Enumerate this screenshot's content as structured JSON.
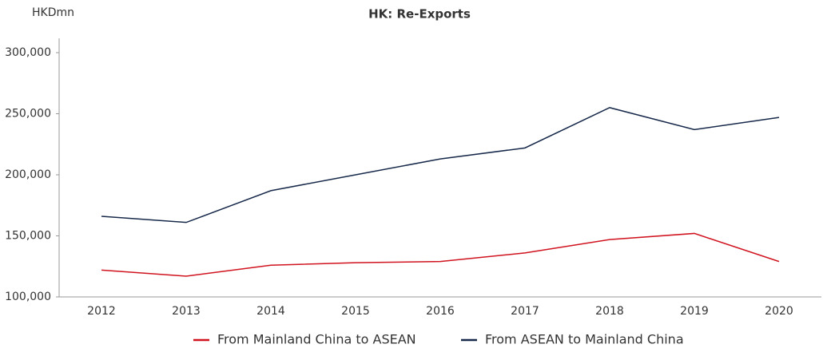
{
  "chart_data": {
    "type": "line",
    "title": "HK: Re-Exports",
    "y_label": "HKDmn",
    "categories": [
      "2012",
      "2013",
      "2014",
      "2015",
      "2016",
      "2017",
      "2018",
      "2019",
      "2020"
    ],
    "series": [
      {
        "name": "From Mainland China to ASEAN",
        "color": "#d0131e",
        "values": [
          122000,
          117000,
          126000,
          128000,
          129000,
          136000,
          147000,
          152000,
          129000
        ]
      },
      {
        "name": "From ASEAN to Mainland China",
        "color": "#17294a",
        "values": [
          166000,
          161000,
          187000,
          200000,
          213000,
          222000,
          255000,
          237000,
          247000
        ]
      }
    ],
    "ylim": [
      100000,
      300000
    ],
    "yticks": [
      {
        "value": 100000,
        "label": "100,000"
      },
      {
        "value": 150000,
        "label": "150,000"
      },
      {
        "value": 200000,
        "label": "200,000"
      },
      {
        "value": 250000,
        "label": "250,000"
      },
      {
        "value": 300000,
        "label": "300,000"
      }
    ],
    "grid": false,
    "legend": "bottom"
  }
}
